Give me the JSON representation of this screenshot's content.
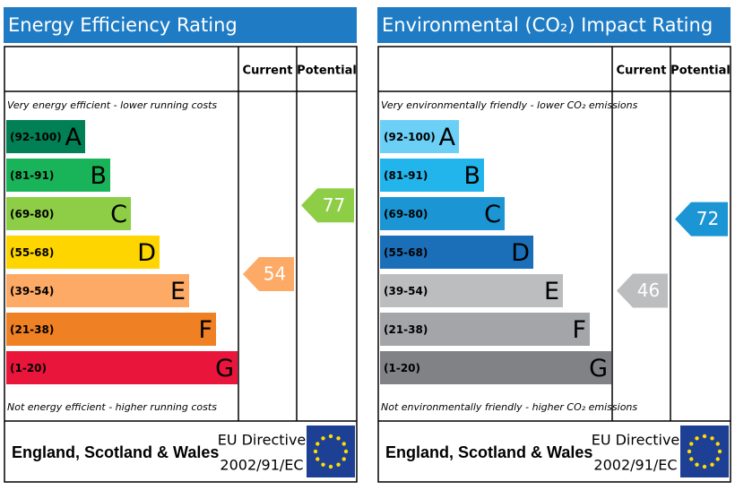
{
  "panels": [
    {
      "title": "Energy Efficiency Rating",
      "columns": [
        "Current",
        "Potential"
      ],
      "top_note": "Very energy efficient - lower running costs",
      "bottom_note": "Not energy efficient - higher running costs",
      "bands": [
        {
          "range": "(92-100)",
          "letter": "A",
          "color": "#008054"
        },
        {
          "range": "(81-91)",
          "letter": "B",
          "color": "#19b459"
        },
        {
          "range": "(69-80)",
          "letter": "C",
          "color": "#8dce46"
        },
        {
          "range": "(55-68)",
          "letter": "D",
          "color": "#ffd500"
        },
        {
          "range": "(39-54)",
          "letter": "E",
          "color": "#fcaa65"
        },
        {
          "range": "(21-38)",
          "letter": "F",
          "color": "#ef8023"
        },
        {
          "range": "(1-20)",
          "letter": "G",
          "color": "#e9153b"
        }
      ],
      "current": 54,
      "potential": 77,
      "footer": "England, Scotland & Wales",
      "directive": [
        "EU Directive",
        "2002/91/EC"
      ]
    },
    {
      "title": "Environmental (CO₂) Impact Rating",
      "columns": [
        "Current",
        "Potential"
      ],
      "top_note": "Very environmentally friendly - lower CO₂ emissions",
      "bottom_note": "Not environmentally friendly - higher CO₂ emissions",
      "bands": [
        {
          "range": "(92-100)",
          "letter": "A",
          "color": "#6ccff6"
        },
        {
          "range": "(81-91)",
          "letter": "B",
          "color": "#22b5eb"
        },
        {
          "range": "(69-80)",
          "letter": "C",
          "color": "#1b95d3"
        },
        {
          "range": "(55-68)",
          "letter": "D",
          "color": "#1b6fb8"
        },
        {
          "range": "(39-54)",
          "letter": "E",
          "color": "#bbbdbf"
        },
        {
          "range": "(21-38)",
          "letter": "F",
          "color": "#a3a5a8"
        },
        {
          "range": "(1-20)",
          "letter": "G",
          "color": "#808285"
        }
      ],
      "current": 46,
      "potential": 72,
      "footer": "England, Scotland & Wales",
      "directive": [
        "EU Directive",
        "2002/91/EC"
      ]
    }
  ]
}
